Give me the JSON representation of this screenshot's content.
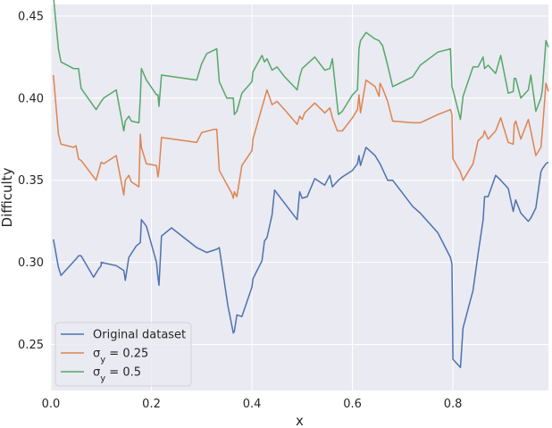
{
  "chart_data": {
    "type": "line",
    "title": "",
    "xlabel": "x",
    "ylabel": "Difficulty",
    "xlim": [
      0.0,
      0.99
    ],
    "ylim": [
      0.222,
      0.457
    ],
    "xticks": [
      0.0,
      0.2,
      0.4,
      0.6,
      0.8
    ],
    "xtick_labels": [
      "0.0",
      "0.2",
      "0.4",
      "0.6",
      "0.8"
    ],
    "yticks": [
      0.25,
      0.3,
      0.35,
      0.4,
      0.45
    ],
    "ytick_labels": [
      "0.25",
      "0.30",
      "0.35",
      "0.40",
      "0.45"
    ],
    "grid": true,
    "legend_position": "lower-left",
    "background": "#eaeaf2",
    "series": [
      {
        "name": "Original dataset",
        "color": "#4c72b0",
        "x": [
          0.005,
          0.015,
          0.02,
          0.05,
          0.055,
          0.06,
          0.085,
          0.095,
          0.1,
          0.1,
          0.13,
          0.145,
          0.148,
          0.155,
          0.17,
          0.178,
          0.18,
          0.19,
          0.21,
          0.213,
          0.215,
          0.22,
          0.24,
          0.29,
          0.31,
          0.33,
          0.335,
          0.352,
          0.363,
          0.365,
          0.37,
          0.38,
          0.4,
          0.402,
          0.42,
          0.425,
          0.43,
          0.44,
          0.445,
          0.45,
          0.465,
          0.49,
          0.495,
          0.5,
          0.51,
          0.525,
          0.545,
          0.555,
          0.56,
          0.572,
          0.58,
          0.6,
          0.61,
          0.613,
          0.616,
          0.627,
          0.645,
          0.655,
          0.67,
          0.68,
          0.72,
          0.735,
          0.77,
          0.795,
          0.798,
          0.8,
          0.815,
          0.82,
          0.84,
          0.85,
          0.86,
          0.863,
          0.87,
          0.885,
          0.895,
          0.91,
          0.92,
          0.922,
          0.925,
          0.935,
          0.95,
          0.955,
          0.965,
          0.975,
          0.978,
          0.985,
          0.99
        ],
        "y": [
          0.314,
          0.297,
          0.292,
          0.302,
          0.304,
          0.304,
          0.291,
          0.296,
          0.298,
          0.3,
          0.298,
          0.295,
          0.289,
          0.303,
          0.31,
          0.312,
          0.326,
          0.322,
          0.3,
          0.291,
          0.286,
          0.316,
          0.321,
          0.309,
          0.306,
          0.308,
          0.309,
          0.274,
          0.257,
          0.258,
          0.268,
          0.267,
          0.285,
          0.29,
          0.301,
          0.313,
          0.315,
          0.329,
          0.344,
          0.342,
          0.336,
          0.326,
          0.343,
          0.339,
          0.34,
          0.351,
          0.347,
          0.353,
          0.346,
          0.35,
          0.352,
          0.356,
          0.36,
          0.365,
          0.359,
          0.37,
          0.365,
          0.36,
          0.35,
          0.35,
          0.334,
          0.33,
          0.318,
          0.303,
          0.299,
          0.241,
          0.236,
          0.26,
          0.283,
          0.305,
          0.326,
          0.34,
          0.34,
          0.353,
          0.35,
          0.345,
          0.331,
          0.334,
          0.338,
          0.33,
          0.325,
          0.327,
          0.333,
          0.355,
          0.357,
          0.36,
          0.361
        ]
      },
      {
        "name": "σ_y = 0.25",
        "color": "#dd8452",
        "x": [
          0.005,
          0.015,
          0.02,
          0.045,
          0.05,
          0.055,
          0.06,
          0.09,
          0.1,
          0.105,
          0.13,
          0.145,
          0.148,
          0.155,
          0.16,
          0.175,
          0.178,
          0.18,
          0.19,
          0.21,
          0.213,
          0.215,
          0.22,
          0.29,
          0.3,
          0.325,
          0.33,
          0.335,
          0.36,
          0.363,
          0.365,
          0.37,
          0.38,
          0.4,
          0.402,
          0.43,
          0.44,
          0.45,
          0.465,
          0.49,
          0.495,
          0.5,
          0.505,
          0.525,
          0.545,
          0.555,
          0.56,
          0.57,
          0.58,
          0.6,
          0.61,
          0.613,
          0.616,
          0.627,
          0.645,
          0.653,
          0.655,
          0.66,
          0.67,
          0.68,
          0.72,
          0.735,
          0.77,
          0.795,
          0.798,
          0.8,
          0.815,
          0.82,
          0.84,
          0.85,
          0.86,
          0.863,
          0.87,
          0.885,
          0.895,
          0.91,
          0.92,
          0.922,
          0.925,
          0.935,
          0.95,
          0.955,
          0.965,
          0.975,
          0.978,
          0.985,
          0.99
        ],
        "y": [
          0.414,
          0.378,
          0.372,
          0.37,
          0.371,
          0.363,
          0.362,
          0.35,
          0.361,
          0.36,
          0.365,
          0.341,
          0.35,
          0.353,
          0.349,
          0.346,
          0.378,
          0.37,
          0.36,
          0.359,
          0.352,
          0.356,
          0.376,
          0.373,
          0.379,
          0.381,
          0.381,
          0.356,
          0.342,
          0.339,
          0.343,
          0.34,
          0.359,
          0.368,
          0.375,
          0.405,
          0.396,
          0.398,
          0.393,
          0.384,
          0.389,
          0.387,
          0.391,
          0.397,
          0.391,
          0.394,
          0.388,
          0.38,
          0.38,
          0.388,
          0.393,
          0.402,
          0.391,
          0.411,
          0.407,
          0.401,
          0.409,
          0.406,
          0.398,
          0.386,
          0.385,
          0.385,
          0.39,
          0.393,
          0.39,
          0.363,
          0.355,
          0.35,
          0.36,
          0.374,
          0.377,
          0.38,
          0.375,
          0.38,
          0.388,
          0.373,
          0.372,
          0.384,
          0.386,
          0.375,
          0.387,
          0.38,
          0.365,
          0.37,
          0.38,
          0.409,
          0.404
        ]
      },
      {
        "name": "σ_y = 0.5",
        "color": "#55a868",
        "x": [
          0.005,
          0.015,
          0.02,
          0.045,
          0.05,
          0.055,
          0.06,
          0.09,
          0.1,
          0.105,
          0.13,
          0.145,
          0.148,
          0.155,
          0.16,
          0.175,
          0.178,
          0.18,
          0.19,
          0.21,
          0.213,
          0.215,
          0.22,
          0.29,
          0.3,
          0.31,
          0.33,
          0.335,
          0.35,
          0.363,
          0.365,
          0.37,
          0.38,
          0.4,
          0.402,
          0.42,
          0.425,
          0.43,
          0.44,
          0.445,
          0.45,
          0.465,
          0.49,
          0.495,
          0.5,
          0.525,
          0.545,
          0.555,
          0.56,
          0.572,
          0.58,
          0.6,
          0.61,
          0.613,
          0.616,
          0.627,
          0.645,
          0.653,
          0.655,
          0.66,
          0.67,
          0.68,
          0.72,
          0.735,
          0.77,
          0.795,
          0.798,
          0.8,
          0.815,
          0.82,
          0.84,
          0.85,
          0.86,
          0.863,
          0.87,
          0.885,
          0.895,
          0.91,
          0.92,
          0.922,
          0.925,
          0.935,
          0.95,
          0.955,
          0.965,
          0.975,
          0.978,
          0.985,
          0.99
        ],
        "y": [
          0.462,
          0.43,
          0.422,
          0.418,
          0.418,
          0.418,
          0.406,
          0.393,
          0.398,
          0.4,
          0.405,
          0.38,
          0.386,
          0.389,
          0.386,
          0.385,
          0.4,
          0.418,
          0.411,
          0.402,
          0.402,
          0.395,
          0.414,
          0.411,
          0.421,
          0.427,
          0.43,
          0.41,
          0.4,
          0.4,
          0.39,
          0.392,
          0.403,
          0.41,
          0.416,
          0.426,
          0.422,
          0.424,
          0.417,
          0.418,
          0.419,
          0.413,
          0.405,
          0.413,
          0.418,
          0.425,
          0.417,
          0.418,
          0.424,
          0.39,
          0.392,
          0.402,
          0.405,
          0.43,
          0.435,
          0.44,
          0.436,
          0.435,
          0.434,
          0.432,
          0.42,
          0.407,
          0.413,
          0.42,
          0.428,
          0.43,
          0.407,
          0.405,
          0.387,
          0.401,
          0.419,
          0.419,
          0.425,
          0.418,
          0.42,
          0.415,
          0.426,
          0.403,
          0.404,
          0.412,
          0.412,
          0.4,
          0.405,
          0.414,
          0.392,
          0.4,
          0.405,
          0.435,
          0.431
        ]
      }
    ]
  }
}
